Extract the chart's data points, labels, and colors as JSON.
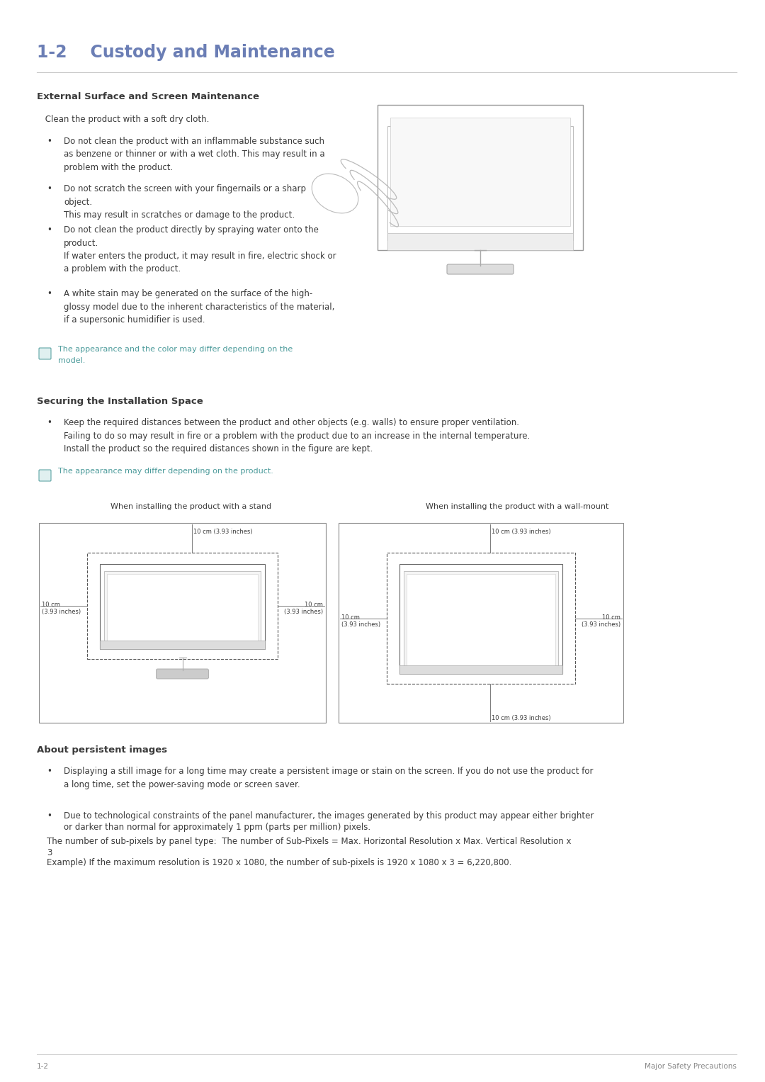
{
  "title": "1-2    Custody and Maintenance",
  "title_color": "#6b7eb5",
  "title_fontsize": 17,
  "header_line_color": "#c8c8c8",
  "bg_color": "#ffffff",
  "section1_heading": "External Surface and Screen Maintenance",
  "section1_intro": " Clean the product with a soft dry cloth.",
  "section1_bullets": [
    "Do not clean the product with an inflammable substance such\nas benzene or thinner or with a wet cloth. This may result in a\nproblem with the product.",
    "Do not scratch the screen with your fingernails or a sharp\nobject.\nThis may result in scratches or damage to the product.",
    "Do not clean the product directly by spraying water onto the\nproduct.\nIf water enters the product, it may result in fire, electric shock or\na problem with the product.",
    "A white stain may be generated on the surface of the high-\nglossy model due to the inherent characteristics of the material,\nif a supersonic humidifier is used."
  ],
  "section1_note_line1": "The appearance and the color may differ depending on the",
  "section1_note_line2": "model.",
  "section2_heading": "Securing the Installation Space",
  "section2_bullet": "Keep the required distances between the product and other objects (e.g. walls) to ensure proper ventilation.\nFailing to do so may result in fire or a problem with the product due to an increase in the internal temperature.\nInstall the product so the required distances shown in the figure are kept.",
  "section2_note": "The appearance may differ depending on the product.",
  "diagram1_title": "When installing the product with a stand",
  "diagram2_title": "When installing the product with a wall-mount",
  "diag_label": "10 cm (3.93 inches)",
  "diag_label_side": "10 cm\n(3.93 inches)",
  "section3_heading": "About persistent images",
  "section3_bullet1": "Displaying a still image for a long time may create a persistent image or stain on the screen. If you do not use the product for\na long time, set the power-saving mode or screen saver.",
  "section3_bullet2_line1": "Due to technological constraints of the panel manufacturer, the images generated by this product may appear either brighter",
  "section3_bullet2_line2": "or darker than normal for approximately 1 ppm (parts per million) pixels.",
  "section3_bullet2_line3": "The number of sub-pixels by panel type:  The number of Sub-Pixels = Max. Horizontal Resolution x Max. Vertical Resolution x",
  "section3_bullet2_line4": "3",
  "section3_bullet2_line5": "Example) If the maximum resolution is 1920 x 1080, the number of sub-pixels is 1920 x 1080 x 3 = 6,220,800.",
  "footer_left": "1-2",
  "footer_right": "Major Safety Precautions",
  "note_color": "#4a9a9a",
  "body_color": "#3a3a3a",
  "body_fontsize": 8.5,
  "heading_fontsize": 9.5
}
